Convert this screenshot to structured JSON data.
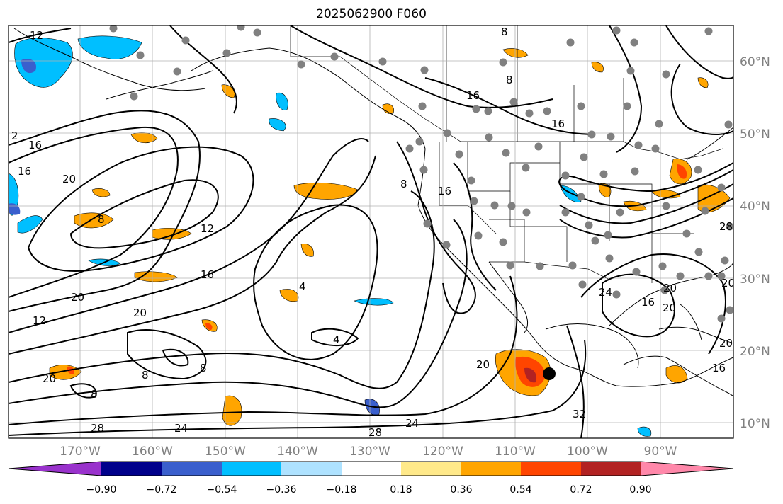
{
  "title": "2025062900 F060",
  "latitude_labels": [
    "60°N",
    "50°N",
    "40°N",
    "30°N",
    "20°N",
    "10°N"
  ],
  "longitude_labels": [
    "170°W",
    "160°W",
    "150°W",
    "140°W",
    "130°W",
    "120°W",
    "110°W",
    "100°W",
    "90°W"
  ],
  "contour_labels": [
    "12",
    "8",
    "16",
    "8",
    "2",
    "16",
    "20",
    "8",
    "12",
    "16",
    "20",
    "20",
    "12",
    "4",
    "4",
    "8",
    "16",
    "16",
    "16",
    "20",
    "20",
    "8",
    "8",
    "20",
    "8",
    "28",
    "24",
    "24",
    "28",
    "24",
    "20",
    "32",
    "16",
    "20",
    "16",
    "28",
    "20"
  ],
  "colorbar": {
    "tick_labels": [
      "−0.90",
      "−0.72",
      "−0.54",
      "−0.36",
      "−0.18",
      "0.18",
      "0.36",
      "0.54",
      "0.72",
      "0.90"
    ],
    "colors": [
      "#9932cc",
      "#00008b",
      "#3a5fcd",
      "#00bfff",
      "#aee2ff",
      "#ffffff",
      "#ffe98a",
      "#ffa500",
      "#ff4500",
      "#b22222",
      "#ff88aa"
    ]
  },
  "colors": {
    "contour": "#000000",
    "grid": "#b0b0b0",
    "station": "#808080",
    "marker": "#000000"
  }
}
